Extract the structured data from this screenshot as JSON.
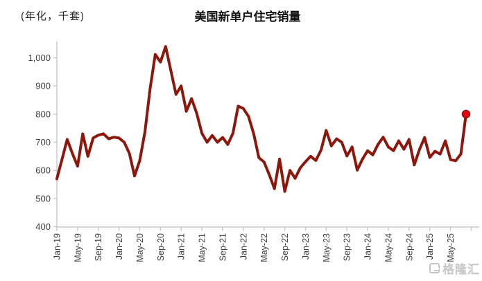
{
  "header": {
    "unit_label": "(年化，千套)",
    "title": "美国新单户住宅销量"
  },
  "watermark": {
    "label": "格隆汇",
    "icon": "gelonghui-g-logo"
  },
  "colors": {
    "line": "#8d170c",
    "last_point_marker": "#e8000d",
    "axis": "#c8c8c8",
    "tick_text": "#3d3d3d"
  },
  "chart_data": {
    "type": "line",
    "title": "美国新单户住宅销量",
    "unit_label": "(年化，千套)",
    "grid": false,
    "legend": false,
    "ylim": [
      400,
      1050
    ],
    "y_ticks": [
      400,
      500,
      600,
      700,
      800,
      900,
      1000
    ],
    "y_tick_labels": [
      "400",
      "500",
      "600",
      "700",
      "800",
      "900",
      "1,000"
    ],
    "x_tick_labels": [
      "Jan-19",
      "May-19",
      "Sep-19",
      "Jan-20",
      "May-20",
      "Sep-20",
      "Jan-21",
      "May-21",
      "Sep-21",
      "Jan-22",
      "May-22",
      "Sep-22",
      "Jan-23",
      "May-23",
      "Sep-23",
      "Jan-24",
      "May-24",
      "Sep-24",
      "Jan-25",
      "May-25"
    ],
    "x_label_rotation_deg": -90,
    "months": [
      "Jan-19",
      "Feb-19",
      "Mar-19",
      "Apr-19",
      "May-19",
      "Jun-19",
      "Jul-19",
      "Aug-19",
      "Sep-19",
      "Oct-19",
      "Nov-19",
      "Dec-19",
      "Jan-20",
      "Feb-20",
      "Mar-20",
      "Apr-20",
      "May-20",
      "Jun-20",
      "Jul-20",
      "Aug-20",
      "Sep-20",
      "Oct-20",
      "Nov-20",
      "Dec-20",
      "Jan-21",
      "Feb-21",
      "Mar-21",
      "Apr-21",
      "May-21",
      "Jun-21",
      "Jul-21",
      "Aug-21",
      "Sep-21",
      "Oct-21",
      "Nov-21",
      "Dec-21",
      "Jan-22",
      "Feb-22",
      "Mar-22",
      "Apr-22",
      "May-22",
      "Jun-22",
      "Jul-22",
      "Aug-22",
      "Sep-22",
      "Oct-22",
      "Nov-22",
      "Dec-22",
      "Jan-23",
      "Feb-23",
      "Mar-23",
      "Apr-23",
      "May-23",
      "Jun-23",
      "Jul-23",
      "Aug-23",
      "Sep-23",
      "Oct-23",
      "Nov-23",
      "Dec-23",
      "Jan-24",
      "Feb-24",
      "Mar-24",
      "Apr-24",
      "May-24",
      "Jun-24",
      "Jul-24",
      "Aug-24",
      "Sep-24",
      "Oct-24",
      "Nov-24",
      "Dec-24",
      "Jan-25",
      "Feb-25",
      "Mar-25",
      "Apr-25",
      "May-25",
      "Jun-25",
      "Jul-25",
      "Aug-25"
    ],
    "series": [
      {
        "name": "美国新单户住宅销量",
        "color": "#8d170c",
        "values": [
          570,
          640,
          710,
          660,
          615,
          730,
          650,
          715,
          725,
          730,
          712,
          718,
          715,
          700,
          660,
          580,
          635,
          737,
          890,
          1012,
          985,
          1040,
          955,
          870,
          900,
          810,
          855,
          803,
          732,
          700,
          724,
          700,
          717,
          692,
          732,
          828,
          820,
          792,
          730,
          645,
          630,
          585,
          535,
          640,
          525,
          600,
          572,
          609,
          631,
          650,
          635,
          672,
          742,
          687,
          712,
          700,
          651,
          683,
          601,
          640,
          670,
          655,
          692,
          718,
          683,
          670,
          705,
          675,
          710,
          619,
          674,
          717,
          646,
          668,
          658,
          705,
          638,
          634,
          658,
          800
        ]
      }
    ],
    "last_point": {
      "x": "Aug-25",
      "value": 800,
      "marker": "red-dot"
    }
  }
}
